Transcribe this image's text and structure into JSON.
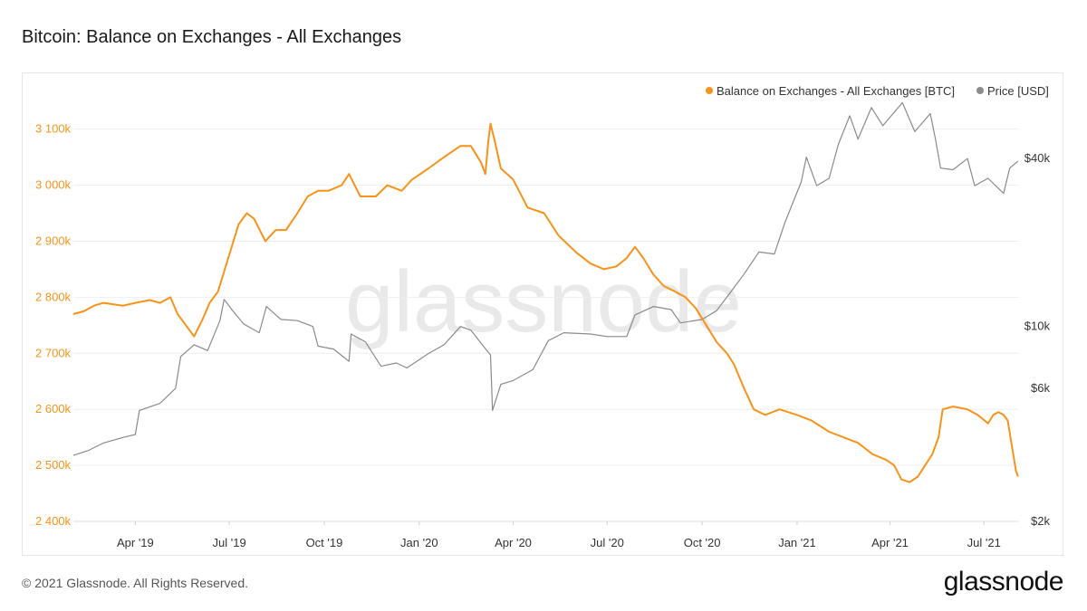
{
  "title": "Bitcoin: Balance on Exchanges - All Exchanges",
  "footer": "© 2021 Glassnode. All Rights Reserved.",
  "logo_text": "glassnode",
  "watermark": "glassnode",
  "colors": {
    "balance": "#f7931a",
    "price": "#8a8a8a",
    "grid": "#eeeeee"
  },
  "chart_data": {
    "type": "line",
    "x_tick_labels": [
      "Apr '19",
      "Jul '19",
      "Oct '19",
      "Jan '20",
      "Apr '20",
      "Jul '20",
      "Oct '20",
      "Jan '21",
      "Apr '21",
      "Jul '21"
    ],
    "x_range": [
      "2019-01-31",
      "2021-08-04"
    ],
    "legend_position": "top-right",
    "grid": true,
    "y_left": {
      "label": "Balance on Exchanges - All Exchanges [BTC]",
      "tick_labels": [
        "3 100k",
        "3 000k",
        "2 900k",
        "2 800k",
        "2 700k",
        "2 600k",
        "2 500k",
        "2 400k"
      ],
      "ylim": [
        2400000,
        3135000
      ]
    },
    "y_right": {
      "label": "Price [USD]",
      "scale": "log",
      "tick_labels": [
        "$40k",
        "$10k",
        "$6k",
        "$2k"
      ],
      "ylim": [
        2000,
        60000
      ]
    },
    "series": [
      {
        "name": "Balance on Exchanges - All Exchanges [BTC]",
        "axis": "left",
        "points": [
          [
            "2019-01-31",
            2770000
          ],
          [
            "2019-02-10",
            2775000
          ],
          [
            "2019-02-20",
            2785000
          ],
          [
            "2019-03-01",
            2790000
          ],
          [
            "2019-03-20",
            2785000
          ],
          [
            "2019-04-01",
            2790000
          ],
          [
            "2019-04-15",
            2795000
          ],
          [
            "2019-04-25",
            2790000
          ],
          [
            "2019-05-05",
            2800000
          ],
          [
            "2019-05-12",
            2770000
          ],
          [
            "2019-05-20",
            2750000
          ],
          [
            "2019-05-28",
            2730000
          ],
          [
            "2019-06-05",
            2760000
          ],
          [
            "2019-06-12",
            2790000
          ],
          [
            "2019-06-20",
            2810000
          ],
          [
            "2019-06-30",
            2870000
          ],
          [
            "2019-07-10",
            2930000
          ],
          [
            "2019-07-18",
            2950000
          ],
          [
            "2019-07-25",
            2940000
          ],
          [
            "2019-08-05",
            2900000
          ],
          [
            "2019-08-15",
            2920000
          ],
          [
            "2019-08-25",
            2920000
          ],
          [
            "2019-09-05",
            2950000
          ],
          [
            "2019-09-15",
            2980000
          ],
          [
            "2019-09-25",
            2990000
          ],
          [
            "2019-10-05",
            2990000
          ],
          [
            "2019-10-18",
            3000000
          ],
          [
            "2019-10-25",
            3020000
          ],
          [
            "2019-11-05",
            2980000
          ],
          [
            "2019-11-20",
            2980000
          ],
          [
            "2019-12-01",
            3000000
          ],
          [
            "2019-12-15",
            2990000
          ],
          [
            "2019-12-25",
            3010000
          ],
          [
            "2020-01-10",
            3030000
          ],
          [
            "2020-01-25",
            3050000
          ],
          [
            "2020-02-10",
            3070000
          ],
          [
            "2020-02-20",
            3070000
          ],
          [
            "2020-03-01",
            3040000
          ],
          [
            "2020-03-05",
            3020000
          ],
          [
            "2020-03-08",
            3080000
          ],
          [
            "2020-03-10",
            3110000
          ],
          [
            "2020-03-14",
            3080000
          ],
          [
            "2020-03-20",
            3030000
          ],
          [
            "2020-04-01",
            3010000
          ],
          [
            "2020-04-15",
            2960000
          ],
          [
            "2020-05-01",
            2950000
          ],
          [
            "2020-05-15",
            2910000
          ],
          [
            "2020-06-01",
            2880000
          ],
          [
            "2020-06-15",
            2860000
          ],
          [
            "2020-06-28",
            2850000
          ],
          [
            "2020-07-10",
            2855000
          ],
          [
            "2020-07-20",
            2870000
          ],
          [
            "2020-07-28",
            2890000
          ],
          [
            "2020-08-05",
            2870000
          ],
          [
            "2020-08-15",
            2840000
          ],
          [
            "2020-08-25",
            2820000
          ],
          [
            "2020-09-05",
            2810000
          ],
          [
            "2020-09-15",
            2800000
          ],
          [
            "2020-09-25",
            2780000
          ],
          [
            "2020-10-05",
            2750000
          ],
          [
            "2020-10-15",
            2720000
          ],
          [
            "2020-10-25",
            2700000
          ],
          [
            "2020-11-01",
            2680000
          ],
          [
            "2020-11-10",
            2640000
          ],
          [
            "2020-11-20",
            2600000
          ],
          [
            "2020-12-01",
            2590000
          ],
          [
            "2020-12-15",
            2600000
          ],
          [
            "2021-01-01",
            2590000
          ],
          [
            "2021-01-15",
            2580000
          ],
          [
            "2021-02-01",
            2560000
          ],
          [
            "2021-02-15",
            2550000
          ],
          [
            "2021-03-01",
            2540000
          ],
          [
            "2021-03-15",
            2520000
          ],
          [
            "2021-03-28",
            2510000
          ],
          [
            "2021-04-05",
            2500000
          ],
          [
            "2021-04-12",
            2475000
          ],
          [
            "2021-04-20",
            2470000
          ],
          [
            "2021-04-28",
            2480000
          ],
          [
            "2021-05-05",
            2500000
          ],
          [
            "2021-05-12",
            2520000
          ],
          [
            "2021-05-18",
            2550000
          ],
          [
            "2021-05-22",
            2600000
          ],
          [
            "2021-06-01",
            2605000
          ],
          [
            "2021-06-15",
            2600000
          ],
          [
            "2021-06-25",
            2590000
          ],
          [
            "2021-07-05",
            2575000
          ],
          [
            "2021-07-10",
            2590000
          ],
          [
            "2021-07-15",
            2595000
          ],
          [
            "2021-07-20",
            2590000
          ],
          [
            "2021-07-24",
            2580000
          ],
          [
            "2021-08-01",
            2490000
          ],
          [
            "2021-08-03",
            2480000
          ]
        ]
      },
      {
        "name": "Price [USD]",
        "axis": "right",
        "points": [
          [
            "2019-01-31",
            3450
          ],
          [
            "2019-02-15",
            3600
          ],
          [
            "2019-03-01",
            3820
          ],
          [
            "2019-03-20",
            4000
          ],
          [
            "2019-04-01",
            4100
          ],
          [
            "2019-04-05",
            5000
          ],
          [
            "2019-04-25",
            5300
          ],
          [
            "2019-05-10",
            6000
          ],
          [
            "2019-05-15",
            7800
          ],
          [
            "2019-05-28",
            8600
          ],
          [
            "2019-06-10",
            8200
          ],
          [
            "2019-06-22",
            10500
          ],
          [
            "2019-06-26",
            12500
          ],
          [
            "2019-07-05",
            11300
          ],
          [
            "2019-07-15",
            10200
          ],
          [
            "2019-07-30",
            9500
          ],
          [
            "2019-08-06",
            11800
          ],
          [
            "2019-08-20",
            10600
          ],
          [
            "2019-09-05",
            10500
          ],
          [
            "2019-09-20",
            10000
          ],
          [
            "2019-09-25",
            8500
          ],
          [
            "2019-10-10",
            8300
          ],
          [
            "2019-10-25",
            7500
          ],
          [
            "2019-10-27",
            9400
          ],
          [
            "2019-11-10",
            8800
          ],
          [
            "2019-11-25",
            7200
          ],
          [
            "2019-12-10",
            7400
          ],
          [
            "2019-12-20",
            7100
          ],
          [
            "2020-01-10",
            8000
          ],
          [
            "2020-01-25",
            8600
          ],
          [
            "2020-02-10",
            10000
          ],
          [
            "2020-02-20",
            9700
          ],
          [
            "2020-03-01",
            8700
          ],
          [
            "2020-03-10",
            7900
          ],
          [
            "2020-03-12",
            5000
          ],
          [
            "2020-03-20",
            6200
          ],
          [
            "2020-04-01",
            6400
          ],
          [
            "2020-04-20",
            7000
          ],
          [
            "2020-05-05",
            8900
          ],
          [
            "2020-05-20",
            9500
          ],
          [
            "2020-06-15",
            9400
          ],
          [
            "2020-07-01",
            9200
          ],
          [
            "2020-07-20",
            9200
          ],
          [
            "2020-07-28",
            11000
          ],
          [
            "2020-08-15",
            11800
          ],
          [
            "2020-09-01",
            11500
          ],
          [
            "2020-09-10",
            10300
          ],
          [
            "2020-10-01",
            10600
          ],
          [
            "2020-10-15",
            11400
          ],
          [
            "2020-10-28",
            13200
          ],
          [
            "2020-11-10",
            15300
          ],
          [
            "2020-11-25",
            18500
          ],
          [
            "2020-12-10",
            18200
          ],
          [
            "2020-12-20",
            23500
          ],
          [
            "2021-01-05",
            33000
          ],
          [
            "2021-01-10",
            40500
          ],
          [
            "2021-01-20",
            32000
          ],
          [
            "2021-02-01",
            34000
          ],
          [
            "2021-02-10",
            45000
          ],
          [
            "2021-02-21",
            57000
          ],
          [
            "2021-03-01",
            47000
          ],
          [
            "2021-03-14",
            61000
          ],
          [
            "2021-03-25",
            52500
          ],
          [
            "2021-04-13",
            63500
          ],
          [
            "2021-04-25",
            50000
          ],
          [
            "2021-05-10",
            58000
          ],
          [
            "2021-05-15",
            47000
          ],
          [
            "2021-05-20",
            37000
          ],
          [
            "2021-06-01",
            36500
          ],
          [
            "2021-06-15",
            40000
          ],
          [
            "2021-06-22",
            32000
          ],
          [
            "2021-07-05",
            34000
          ],
          [
            "2021-07-20",
            30000
          ],
          [
            "2021-07-26",
            37000
          ],
          [
            "2021-08-03",
            39200
          ]
        ]
      }
    ]
  }
}
